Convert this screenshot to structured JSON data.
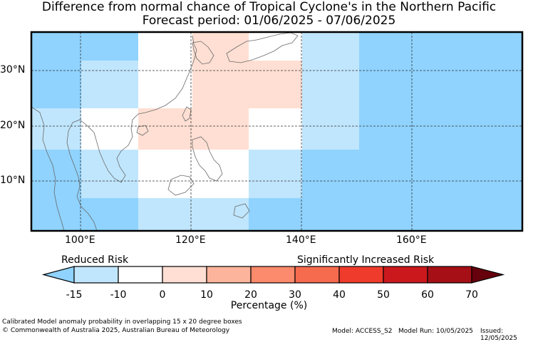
{
  "title_line1": "Difference from normal chance of Tropical Cyclone's in the Northern Pacific",
  "title_line2": "Forecast period: 01/06/2025 - 07/06/2025",
  "lat_labels": [
    "30°N",
    "20°N",
    "10°N"
  ],
  "lon_labels": [
    "100°E",
    "120°E",
    "140°E",
    "160°E"
  ],
  "legend": {
    "left_label": "Reduced Risk",
    "right_label": "Significantly Increased Risk",
    "ticks": [
      "-15",
      "-10",
      "0",
      "10",
      "20",
      "30",
      "40",
      "50",
      "60",
      "70"
    ],
    "axis_label": "Percentage (%)",
    "colors": [
      "#8fd3fe",
      "#c0e6fd",
      "#ffffff",
      "#ffdfd3",
      "#fdb49c",
      "#fc8a6c",
      "#f66b4e",
      "#ef3b2c",
      "#cb181d",
      "#a50f15",
      "#67000d"
    ]
  },
  "map_colors": {
    "neg15": "#8fd3fe",
    "neg10": "#c0e6fd",
    "zero": "#ffffff",
    "pos10": "#ffdfd3"
  },
  "footer": {
    "caption": "Calibrated Model anomaly probability in overlapping 15 x 20 degree boxes",
    "copyright": "© Commonwealth of Australia 2025, Australian Bureau of Meteorology",
    "model": "Model: ACCESS_S2",
    "model_run": "Model Run: 10/05/2025",
    "issued": "Issued: 12/05/2025"
  }
}
